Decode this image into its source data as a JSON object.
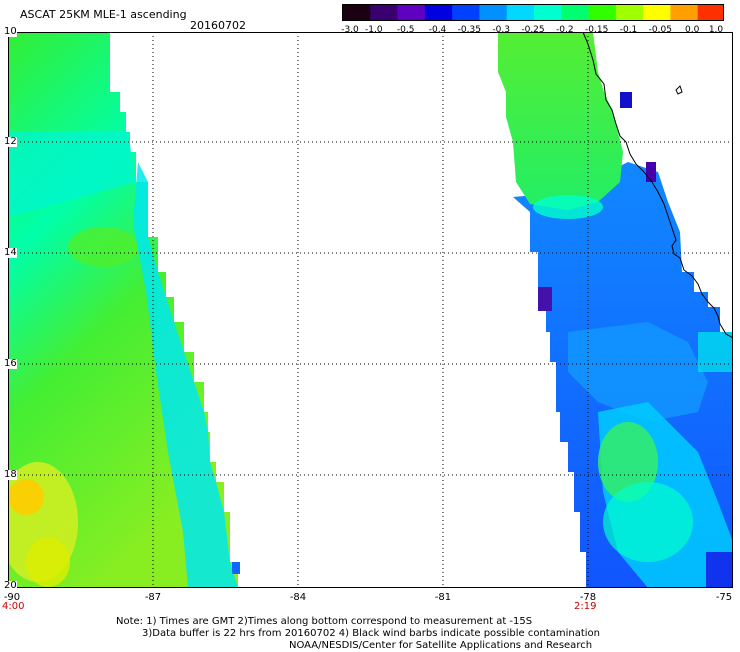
{
  "header": {
    "title": "ASCAT 25KM MLE-1 ascending",
    "date": "20160702"
  },
  "colorbar": {
    "ticks": [
      "-3.0",
      "-1.0",
      "-0.5",
      "-0.4",
      "-0.35",
      "-0.3",
      "-0.25",
      "-0.2",
      "-0.15",
      "-0.1",
      "-0.05",
      "0.0",
      "1.0"
    ],
    "colors": [
      "#1a0010",
      "#3a0070",
      "#6000c0",
      "#0000e0",
      "#0040ff",
      "#0090ff",
      "#00d8ff",
      "#00ffd0",
      "#00ff70",
      "#30ff00",
      "#a0ff00",
      "#ffff00",
      "#ffa000",
      "#ff3000"
    ]
  },
  "map": {
    "lat_labels": [
      "10",
      "12",
      "14",
      "16",
      "18",
      "20"
    ],
    "lon_labels": [
      "-90",
      "-87",
      "-84",
      "-81",
      "-78",
      "-75"
    ],
    "time_labels": [
      "4:00",
      "2:19"
    ],
    "swath_colors": {
      "green": "#33ee33",
      "light_green": "#66ff33",
      "yellow": "#ddee22",
      "orange": "#ffcc00",
      "cyan": "#00ddee",
      "aqua": "#00ffcc",
      "blue": "#1166ff",
      "dark_blue": "#1122ee",
      "purple": "#4400aa"
    }
  },
  "footnote": {
    "line1": "Note: 1) Times are GMT 2)Times along bottom correspond to measurement at -15S",
    "line2": "3)Data buffer is 22 hrs from 20160702 4) Black wind barbs indicate possible contamination",
    "line3": "NOAA/NESDIS/Center for Satellite Applications and Research"
  }
}
